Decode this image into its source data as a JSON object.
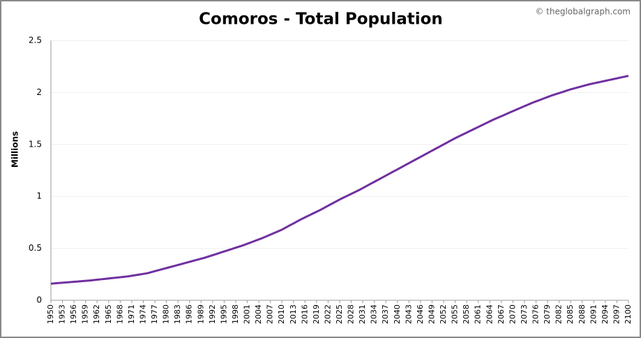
{
  "chart_data": {
    "type": "line",
    "title": "Comoros - Total Population",
    "source": "© theglobalgraph.com",
    "ylabel": "Millions",
    "color": "#7030a0",
    "grid": true,
    "xlim": [
      1950,
      2100
    ],
    "ylim": [
      0,
      2.5
    ],
    "yticks": [
      0,
      0.5,
      1,
      1.5,
      2,
      2.5
    ],
    "xticks": [
      1950,
      1953,
      1956,
      1959,
      1962,
      1965,
      1968,
      1971,
      1974,
      1977,
      1980,
      1983,
      1986,
      1989,
      1992,
      1995,
      1998,
      2001,
      2004,
      2007,
      2010,
      2013,
      2016,
      2019,
      2022,
      2025,
      2028,
      2031,
      2034,
      2037,
      2040,
      2043,
      2046,
      2049,
      2052,
      2055,
      2058,
      2061,
      2064,
      2067,
      2070,
      2073,
      2076,
      2079,
      2082,
      2085,
      2088,
      2091,
      2094,
      2097,
      2100
    ],
    "x": [
      1950,
      1951,
      1952,
      1953,
      1954,
      1955,
      1956,
      1957,
      1958,
      1959,
      1960,
      1961,
      1962,
      1963,
      1964,
      1965,
      1966,
      1967,
      1968,
      1969,
      1970,
      1971,
      1972,
      1973,
      1974,
      1975,
      1976,
      1977,
      1978,
      1979,
      1980,
      1981,
      1982,
      1983,
      1984,
      1985,
      1986,
      1987,
      1988,
      1989,
      1990,
      1991,
      1992,
      1993,
      1994,
      1995,
      1996,
      1997,
      1998,
      1999,
      2000,
      2001,
      2002,
      2003,
      2004,
      2005,
      2006,
      2007,
      2008,
      2009,
      2010,
      2011,
      2012,
      2013,
      2014,
      2015,
      2016,
      2017,
      2018,
      2019,
      2020,
      2021,
      2022,
      2023,
      2024,
      2025,
      2026,
      2027,
      2028,
      2029,
      2030,
      2031,
      2032,
      2033,
      2034,
      2035,
      2036,
      2037,
      2038,
      2039,
      2040,
      2041,
      2042,
      2043,
      2044,
      2045,
      2046,
      2047,
      2048,
      2049,
      2050,
      2051,
      2052,
      2053,
      2054,
      2055,
      2056,
      2057,
      2058,
      2059,
      2060,
      2061,
      2062,
      2063,
      2064,
      2065,
      2066,
      2067,
      2068,
      2069,
      2070,
      2071,
      2072,
      2073,
      2074,
      2075,
      2076,
      2077,
      2078,
      2079,
      2080,
      2081,
      2082,
      2083,
      2084,
      2085,
      2086,
      2087,
      2088,
      2089,
      2090,
      2091,
      2092,
      2093,
      2094,
      2095,
      2096,
      2097,
      2098,
      2099,
      2100
    ],
    "values": [
      0.16,
      0.163,
      0.166,
      0.169,
      0.172,
      0.175,
      0.178,
      0.181,
      0.184,
      0.187,
      0.19,
      0.194,
      0.198,
      0.202,
      0.206,
      0.21,
      0.214,
      0.218,
      0.222,
      0.226,
      0.23,
      0.236,
      0.242,
      0.248,
      0.254,
      0.26,
      0.27,
      0.28,
      0.29,
      0.3,
      0.31,
      0.32,
      0.33,
      0.34,
      0.35,
      0.36,
      0.37,
      0.38,
      0.39,
      0.4,
      0.41,
      0.422,
      0.434,
      0.446,
      0.458,
      0.47,
      0.482,
      0.494,
      0.506,
      0.518,
      0.53,
      0.544,
      0.558,
      0.572,
      0.586,
      0.6,
      0.616,
      0.632,
      0.648,
      0.664,
      0.68,
      0.7,
      0.72,
      0.74,
      0.76,
      0.78,
      0.798,
      0.816,
      0.834,
      0.852,
      0.87,
      0.89,
      0.91,
      0.93,
      0.95,
      0.97,
      0.988,
      1.006,
      1.024,
      1.042,
      1.06,
      1.08,
      1.1,
      1.12,
      1.14,
      1.16,
      1.18,
      1.2,
      1.22,
      1.24,
      1.26,
      1.28,
      1.3,
      1.32,
      1.34,
      1.36,
      1.38,
      1.4,
      1.42,
      1.44,
      1.46,
      1.48,
      1.5,
      1.52,
      1.54,
      1.56,
      1.578,
      1.596,
      1.614,
      1.632,
      1.65,
      1.668,
      1.686,
      1.704,
      1.722,
      1.74,
      1.756,
      1.772,
      1.788,
      1.804,
      1.82,
      1.836,
      1.852,
      1.868,
      1.884,
      1.9,
      1.914,
      1.928,
      1.942,
      1.956,
      1.97,
      1.982,
      1.994,
      2.006,
      2.018,
      2.03,
      2.04,
      2.05,
      2.06,
      2.07,
      2.08,
      2.088,
      2.096,
      2.104,
      2.112,
      2.12,
      2.128,
      2.136,
      2.144,
      2.152,
      2.16
    ]
  }
}
